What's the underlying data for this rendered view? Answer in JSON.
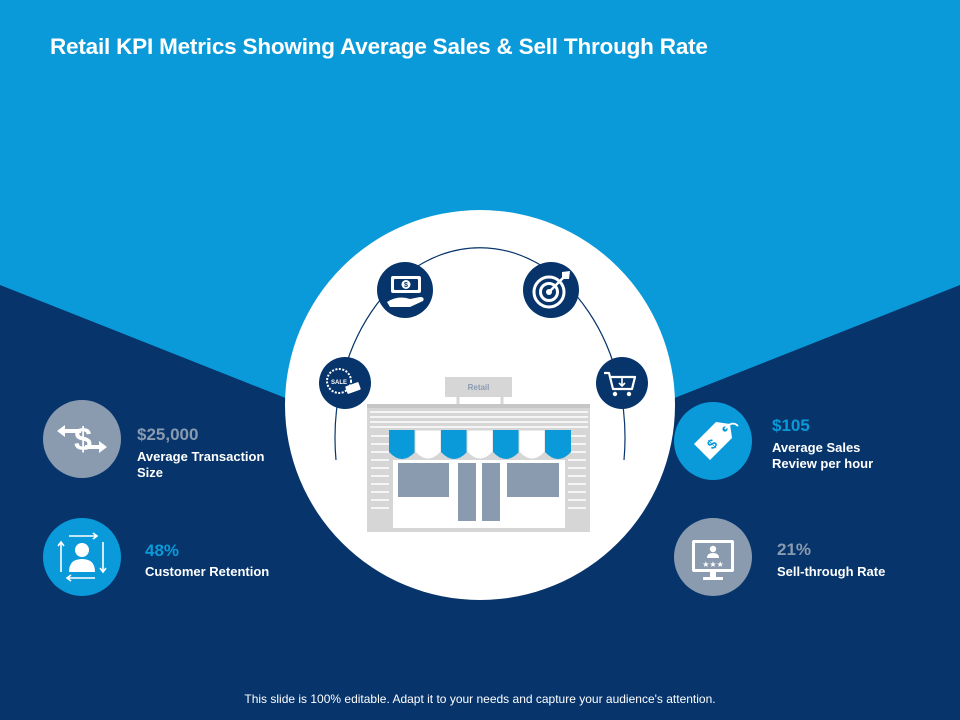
{
  "slide": {
    "title": "Retail KPI Metrics Showing Average Sales & Sell Through Rate",
    "footer": "This slide is 100% editable. Adapt it to your needs and capture your audience's attention."
  },
  "store": {
    "sign": "Retail",
    "badge": "SALE"
  },
  "kpis": [
    {
      "value": "$25,000",
      "label_line1": "Average Transaction",
      "label_line2": "Size",
      "icon": "dollar-arrows-icon"
    },
    {
      "value": "48%",
      "label_line1": "Customer Retention",
      "label_line2": "",
      "icon": "customer-retention-icon"
    },
    {
      "value": "$105",
      "label_line1": "Average Sales",
      "label_line2": "Review per hour",
      "icon": "price-tag-icon"
    },
    {
      "value": "21%",
      "label_line1": "Sell-through Rate",
      "label_line2": "",
      "icon": "monitor-rating-icon"
    }
  ],
  "colors": {
    "light_blue": "#0a9ad9",
    "dark_navy": "#06346b",
    "grey": "#8a9bb0",
    "white": "#ffffff"
  }
}
